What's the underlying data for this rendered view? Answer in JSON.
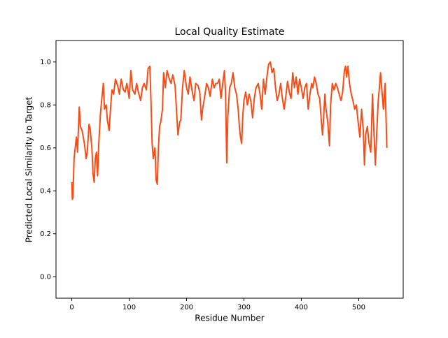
{
  "chart_data": {
    "type": "line",
    "title": "Local Quality Estimate",
    "x_label": "Residue Number",
    "y_label": "Predicted Local Similarity to Target",
    "xlim": [
      -27.5,
      577.5
    ],
    "ylim": [
      -0.1,
      1.1
    ],
    "xticks": [
      0,
      100,
      200,
      300,
      400,
      500
    ],
    "yticks": [
      {
        "value": 0,
        "label": "0.0"
      },
      0.2,
      0.4,
      0.6,
      0.8,
      {
        "value": 1,
        "label": "1.0"
      }
    ],
    "grid": false,
    "series": [
      {
        "color": "#f84c16",
        "x": [
          0,
          1,
          2,
          4,
          6,
          8,
          10,
          12,
          13,
          15,
          18,
          20,
          22,
          25,
          27,
          30,
          32,
          35,
          37,
          39,
          41,
          43,
          45,
          47,
          50,
          52,
          55,
          57,
          60,
          62,
          65,
          68,
          70,
          73,
          76,
          80,
          83,
          86,
          90,
          93,
          96,
          100,
          103,
          106,
          110,
          113,
          116,
          120,
          123,
          126,
          130,
          133,
          136,
          138,
          140,
          142,
          145,
          147,
          149,
          151,
          153,
          155,
          158,
          160,
          163,
          166,
          170,
          173,
          176,
          180,
          183,
          185,
          188,
          190,
          193,
          196,
          200,
          203,
          206,
          210,
          213,
          216,
          220,
          223,
          226,
          228,
          231,
          235,
          238,
          241,
          245,
          248,
          251,
          254,
          257,
          260,
          263,
          266,
          268,
          270,
          272,
          275,
          278,
          281,
          284,
          287,
          290,
          292,
          294,
          296,
          298,
          300,
          303,
          306,
          309,
          312,
          315,
          318,
          321,
          325,
          328,
          331,
          334,
          337,
          340,
          343,
          346,
          349,
          352,
          355,
          358,
          361,
          364,
          367,
          370,
          373,
          376,
          379,
          382,
          385,
          388,
          391,
          394,
          397,
          400,
          403,
          406,
          409,
          412,
          415,
          418,
          420,
          423,
          426,
          429,
          432,
          435,
          437,
          439,
          441,
          443,
          446,
          449,
          451,
          454,
          457,
          460,
          463,
          466,
          469,
          472,
          475,
          477,
          479,
          481,
          484,
          487,
          490,
          493,
          496,
          499,
          502,
          505,
          508,
          510,
          512,
          515,
          518,
          521,
          524,
          526,
          529,
          531,
          534,
          536,
          538,
          540,
          543,
          546,
          549
        ],
        "values": [
          0.44,
          0.36,
          0.37,
          0.55,
          0.6,
          0.65,
          0.58,
          0.72,
          0.79,
          0.7,
          0.68,
          0.65,
          0.62,
          0.55,
          0.58,
          0.71,
          0.69,
          0.6,
          0.48,
          0.44,
          0.55,
          0.58,
          0.47,
          0.62,
          0.76,
          0.82,
          0.9,
          0.78,
          0.8,
          0.73,
          0.68,
          0.8,
          0.87,
          0.85,
          0.92,
          0.89,
          0.85,
          0.92,
          0.87,
          0.86,
          0.9,
          0.83,
          0.96,
          0.87,
          0.85,
          0.9,
          0.86,
          0.82,
          0.88,
          0.9,
          0.87,
          0.97,
          0.98,
          0.82,
          0.62,
          0.55,
          0.6,
          0.45,
          0.43,
          0.6,
          0.7,
          0.72,
          0.78,
          0.95,
          0.88,
          0.96,
          0.92,
          0.9,
          0.94,
          0.89,
          0.75,
          0.66,
          0.72,
          0.73,
          0.88,
          0.96,
          0.88,
          0.85,
          0.93,
          0.86,
          0.82,
          0.9,
          0.89,
          0.86,
          0.73,
          0.78,
          0.83,
          0.9,
          0.88,
          0.84,
          0.92,
          0.88,
          0.9,
          0.9,
          0.92,
          0.83,
          0.9,
          0.96,
          0.85,
          0.53,
          0.75,
          0.88,
          0.9,
          0.95,
          0.88,
          0.85,
          0.78,
          0.7,
          0.65,
          0.62,
          0.75,
          0.82,
          0.86,
          0.8,
          0.85,
          0.82,
          0.74,
          0.83,
          0.88,
          0.9,
          0.85,
          0.78,
          0.92,
          0.85,
          0.93,
          0.99,
          1.0,
          0.95,
          0.97,
          0.88,
          0.82,
          0.85,
          0.9,
          0.83,
          0.78,
          0.84,
          0.91,
          0.86,
          0.83,
          0.95,
          0.88,
          0.93,
          0.85,
          0.92,
          0.88,
          0.83,
          0.88,
          0.9,
          0.78,
          0.85,
          0.9,
          0.88,
          0.93,
          0.9,
          0.85,
          0.83,
          0.72,
          0.66,
          0.75,
          0.85,
          0.78,
          0.72,
          0.61,
          0.8,
          0.9,
          0.87,
          0.9,
          0.88,
          0.85,
          0.82,
          0.86,
          0.96,
          0.98,
          0.93,
          0.98,
          0.9,
          0.85,
          0.82,
          0.78,
          0.8,
          0.72,
          0.65,
          0.78,
          0.68,
          0.52,
          0.66,
          0.7,
          0.62,
          0.58,
          0.85,
          0.7,
          0.52,
          0.65,
          0.82,
          0.88,
          0.95,
          0.88,
          0.78,
          0.9,
          0.6
        ]
      }
    ]
  }
}
